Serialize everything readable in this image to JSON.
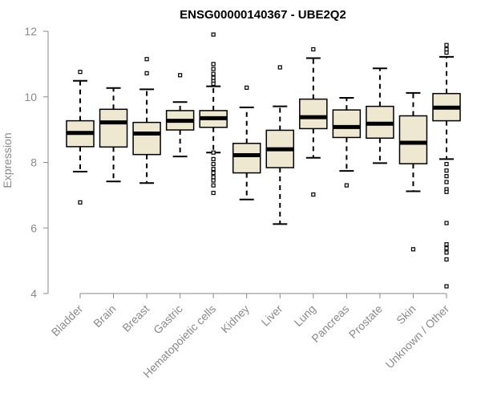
{
  "chart_data": {
    "type": "boxplot",
    "title": "ENSG00000140367 - UBE2Q2",
    "xlabel": "",
    "ylabel": "Expression",
    "ylim": [
      4,
      12
    ],
    "yticks": [
      4,
      6,
      8,
      10,
      12
    ],
    "grid": false,
    "legend": "none",
    "colors": {
      "box_fill": "#efe8d0",
      "stroke": "#000000",
      "axis": "#8a8a8a"
    },
    "categories": [
      "Bladder",
      "Brain",
      "Breast",
      "Gastric",
      "Hematopoietic cells",
      "Kidney",
      "Liver",
      "Lung",
      "Pancreas",
      "Prostate",
      "Skin",
      "Unknown / Other"
    ],
    "boxes": [
      {
        "q1": 8.48,
        "median": 8.9,
        "q3": 9.27,
        "whisker_low": 7.72,
        "whisker_high": 10.49,
        "outliers": [
          10.76,
          6.78
        ]
      },
      {
        "q1": 8.47,
        "median": 9.22,
        "q3": 9.62,
        "whisker_low": 7.42,
        "whisker_high": 10.27,
        "outliers": []
      },
      {
        "q1": 8.24,
        "median": 8.88,
        "q3": 9.22,
        "whisker_low": 7.37,
        "whisker_high": 10.23,
        "outliers": [
          11.15,
          10.72
        ]
      },
      {
        "q1": 8.99,
        "median": 9.27,
        "q3": 9.58,
        "whisker_low": 8.18,
        "whisker_high": 9.84,
        "outliers": [
          10.66
        ]
      },
      {
        "q1": 9.07,
        "median": 9.35,
        "q3": 9.58,
        "whisker_low": 8.3,
        "whisker_high": 10.32,
        "outliers": [
          11.9,
          11.0,
          10.85,
          10.7,
          10.58,
          10.48,
          10.4,
          8.3,
          8.1,
          7.95,
          7.8,
          7.68,
          7.55,
          7.45,
          7.3,
          7.07
        ]
      },
      {
        "q1": 7.68,
        "median": 8.22,
        "q3": 8.58,
        "whisker_low": 6.87,
        "whisker_high": 9.68,
        "outliers": [
          10.28
        ]
      },
      {
        "q1": 7.84,
        "median": 8.4,
        "q3": 8.98,
        "whisker_low": 6.12,
        "whisker_high": 9.71,
        "outliers": [
          10.9
        ]
      },
      {
        "q1": 9.03,
        "median": 9.38,
        "q3": 9.93,
        "whisker_low": 8.14,
        "whisker_high": 11.18,
        "outliers": [
          11.45,
          7.02
        ]
      },
      {
        "q1": 8.76,
        "median": 9.08,
        "q3": 9.6,
        "whisker_low": 7.74,
        "whisker_high": 9.97,
        "outliers": [
          7.3
        ]
      },
      {
        "q1": 8.74,
        "median": 9.18,
        "q3": 9.71,
        "whisker_low": 7.98,
        "whisker_high": 10.87,
        "outliers": []
      },
      {
        "q1": 7.96,
        "median": 8.6,
        "q3": 9.42,
        "whisker_low": 7.12,
        "whisker_high": 10.12,
        "outliers": [
          5.35
        ]
      },
      {
        "q1": 9.27,
        "median": 9.67,
        "q3": 10.1,
        "whisker_low": 8.1,
        "whisker_high": 11.22,
        "outliers": [
          11.58,
          11.45,
          11.35,
          7.95,
          7.75,
          7.58,
          7.4,
          7.18,
          7.1,
          6.15,
          5.5,
          5.38,
          5.25,
          5.04,
          4.22
        ]
      }
    ]
  }
}
